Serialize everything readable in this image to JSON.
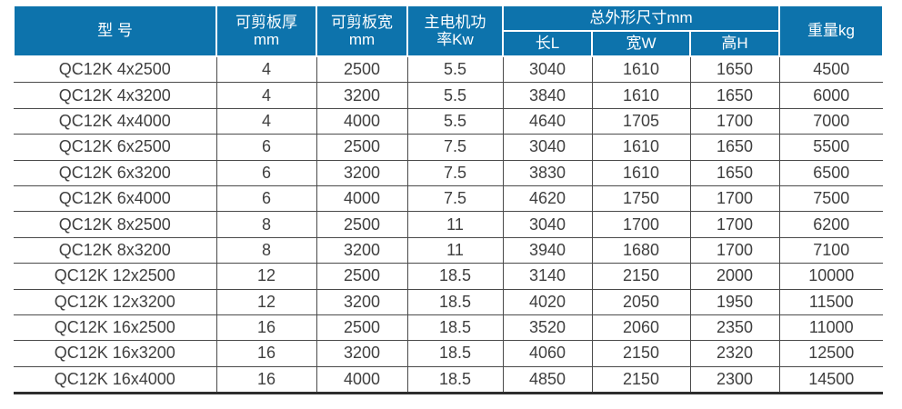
{
  "colors": {
    "header_bg": "#0d73ac",
    "header_text": "#ffffff",
    "body_text": "#3f3f3f",
    "grid_line": "#4a4a4a",
    "bottom_rule": "#2e2e2e"
  },
  "chart_data": {
    "type": "table",
    "title": "",
    "header": {
      "model": "型 号",
      "thickness": [
        "可剪板厚",
        "mm"
      ],
      "plate_width": [
        "可剪板宽",
        "mm"
      ],
      "power": [
        "主电机功",
        "率Kw"
      ],
      "dims_group": "总外形尺寸mm",
      "dims": [
        "长L",
        "宽W",
        "高H"
      ],
      "weight": "重量kg"
    },
    "columns_flat": [
      "型 号",
      "可剪板厚 mm",
      "可剪板宽 mm",
      "主电机功率Kw",
      "长L",
      "宽W",
      "高H",
      "重量kg"
    ],
    "rows": [
      [
        "QC12K 4x2500",
        "4",
        "2500",
        "5.5",
        "3040",
        "1610",
        "1650",
        "4500"
      ],
      [
        "QC12K 4x3200",
        "4",
        "3200",
        "5.5",
        "3840",
        "1610",
        "1650",
        "6000"
      ],
      [
        "QC12K 4x4000",
        "4",
        "4000",
        "5.5",
        "4640",
        "1705",
        "1700",
        "7000"
      ],
      [
        "QC12K 6x2500",
        "6",
        "2500",
        "7.5",
        "3040",
        "1610",
        "1650",
        "5500"
      ],
      [
        "QC12K 6x3200",
        "6",
        "3200",
        "7.5",
        "3830",
        "1610",
        "1650",
        "6500"
      ],
      [
        "QC12K 6x4000",
        "6",
        "4000",
        "7.5",
        "4620",
        "1750",
        "1700",
        "7500"
      ],
      [
        "QC12K 8x2500",
        "8",
        "2500",
        "11",
        "3040",
        "1700",
        "1700",
        "6200"
      ],
      [
        "QC12K 8x3200",
        "8",
        "3200",
        "11",
        "3940",
        "1680",
        "1700",
        "7100"
      ],
      [
        "QC12K 12x2500",
        "12",
        "2500",
        "18.5",
        "3140",
        "2150",
        "2000",
        "10000"
      ],
      [
        "QC12K 12x3200",
        "12",
        "3200",
        "18.5",
        "4020",
        "2050",
        "1950",
        "11500"
      ],
      [
        "QC12K 16x2500",
        "16",
        "2500",
        "18.5",
        "3520",
        "2060",
        "2350",
        "11000"
      ],
      [
        "QC12K 16x3200",
        "16",
        "3200",
        "18.5",
        "4060",
        "2150",
        "2320",
        "12500"
      ],
      [
        "QC12K 16x4000",
        "16",
        "4000",
        "18.5",
        "4850",
        "2150",
        "2300",
        "14500"
      ]
    ]
  }
}
